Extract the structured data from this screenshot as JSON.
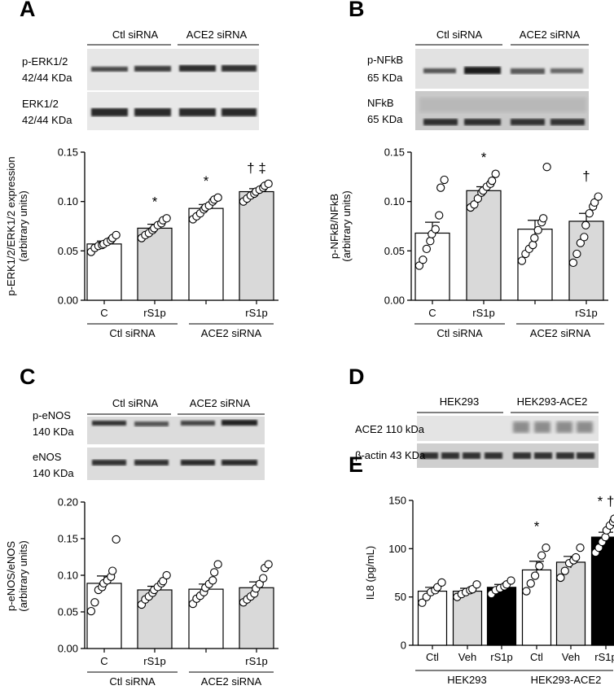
{
  "panels": {
    "A": {
      "letter": "A",
      "blot_groups": [
        "Ctl siRNA",
        "ACE2 siRNA"
      ],
      "blot_rows": [
        {
          "label1": "p-ERK1/2",
          "label2": "42/44 KDa"
        },
        {
          "label1": "ERK1/2",
          "label2": "42/44 KDa"
        }
      ]
    },
    "B": {
      "letter": "B",
      "blot_groups": [
        "Ctl siRNA",
        "ACE2 siRNA"
      ],
      "blot_rows": [
        {
          "label1": "p-NFkB",
          "label2": "65 KDa"
        },
        {
          "label1": "NFkB",
          "label2": "65 KDa"
        }
      ]
    },
    "C": {
      "letter": "C",
      "blot_groups": [
        "Ctl siRNA",
        "ACE2 siRNA"
      ],
      "blot_rows": [
        {
          "label1": "p-eNOS",
          "label2": "140 KDa"
        },
        {
          "label1": "eNOS",
          "label2": "140 KDa"
        }
      ]
    },
    "D": {
      "letter": "D",
      "blot_groups": [
        "HEK293",
        "HEK293-ACE2"
      ],
      "blot_rows": [
        {
          "label1": "ACE2 110 kDa"
        },
        {
          "label1": "β-actin 43 KDa"
        }
      ]
    },
    "E": {
      "letter": "E"
    }
  },
  "colors": {
    "white_bar": "#ffffff",
    "grey_bar": "#d9d9d9",
    "black_bar": "#000000"
  },
  "chart_data": [
    {
      "panel": "A",
      "type": "bar",
      "ylabel": "p-ERK1/2/ERK1/2 expression\n(arbitrary units)",
      "ylim": [
        0,
        0.15
      ],
      "yticks": [
        "0.00",
        "0.05",
        "0.10",
        "0.15"
      ],
      "categories": [
        "C",
        "rS1p",
        "",
        "rS1p"
      ],
      "groups": [
        "Ctl siRNA",
        "ACE2 siRNA"
      ],
      "values": [
        0.057,
        0.073,
        0.093,
        0.11
      ],
      "errors": [
        0.003,
        0.004,
        0.004,
        0.003
      ],
      "fills": [
        "white",
        "grey",
        "white",
        "grey"
      ],
      "annotations": [
        "",
        "*",
        "*",
        "† ‡"
      ],
      "points": [
        [
          0.049,
          0.053,
          0.055,
          0.056,
          0.057,
          0.059,
          0.061,
          0.063,
          0.066
        ],
        [
          0.063,
          0.066,
          0.068,
          0.071,
          0.073,
          0.076,
          0.078,
          0.081,
          0.083
        ],
        [
          0.082,
          0.085,
          0.088,
          0.092,
          0.094,
          0.096,
          0.1,
          0.102,
          0.104
        ],
        [
          0.1,
          0.103,
          0.106,
          0.108,
          0.11,
          0.112,
          0.114,
          0.116,
          0.118
        ]
      ]
    },
    {
      "panel": "B",
      "type": "bar",
      "ylabel": "p-NFkB/NFkB\n(arbitrary units)",
      "ylim": [
        0,
        0.15
      ],
      "yticks": [
        "0.00",
        "0.05",
        "0.10",
        "0.15"
      ],
      "categories": [
        "C",
        "rS1p",
        "",
        "rS1p"
      ],
      "groups": [
        "Ctl siRNA",
        "ACE2 siRNA"
      ],
      "values": [
        0.068,
        0.111,
        0.072,
        0.08
      ],
      "errors": [
        0.011,
        0.004,
        0.009,
        0.008
      ],
      "fills": [
        "white",
        "grey",
        "white",
        "grey"
      ],
      "annotations": [
        "",
        "*",
        "",
        "†"
      ],
      "points": [
        [
          0.035,
          0.041,
          0.052,
          0.06,
          0.067,
          0.072,
          0.086,
          0.114,
          0.122
        ],
        [
          0.094,
          0.097,
          0.103,
          0.109,
          0.111,
          0.115,
          0.118,
          0.121,
          0.128
        ],
        [
          0.04,
          0.047,
          0.052,
          0.056,
          0.063,
          0.071,
          0.079,
          0.083,
          0.135
        ],
        [
          0.038,
          0.047,
          0.058,
          0.064,
          0.076,
          0.088,
          0.095,
          0.099,
          0.105
        ]
      ]
    },
    {
      "panel": "C",
      "type": "bar",
      "ylabel": "p-eNOS/eNOS\n(arbitrary units)",
      "ylim": [
        0,
        0.2
      ],
      "yticks": [
        "0.00",
        "0.05",
        "0.10",
        "0.15",
        "0.20"
      ],
      "categories": [
        "C",
        "rS1p",
        "",
        "rS1p"
      ],
      "groups": [
        "Ctl siRNA",
        "ACE2 siRNA"
      ],
      "values": [
        0.089,
        0.08,
        0.081,
        0.083
      ],
      "errors": [
        0.01,
        0.005,
        0.007,
        0.008
      ],
      "fills": [
        "white",
        "grey",
        "white",
        "grey"
      ],
      "annotations": [
        "",
        "",
        "",
        ""
      ],
      "points": [
        [
          0.051,
          0.063,
          0.08,
          0.084,
          0.089,
          0.093,
          0.098,
          0.106,
          0.149
        ],
        [
          0.06,
          0.067,
          0.071,
          0.076,
          0.08,
          0.084,
          0.089,
          0.092,
          0.1
        ],
        [
          0.061,
          0.068,
          0.072,
          0.077,
          0.083,
          0.088,
          0.093,
          0.104,
          0.115
        ],
        [
          0.063,
          0.067,
          0.071,
          0.075,
          0.082,
          0.088,
          0.096,
          0.11,
          0.115
        ]
      ]
    },
    {
      "panel": "E",
      "type": "bar",
      "ylabel": "IL8 (pg/mL)",
      "ylim": [
        0,
        150
      ],
      "yticks": [
        "0",
        "50",
        "100",
        "150"
      ],
      "categories": [
        "Ctl",
        "Veh",
        "rS1p",
        "Ctl",
        "Veh",
        "rS1p"
      ],
      "groups": [
        "HEK293",
        "HEK293-ACE2"
      ],
      "values": [
        56,
        56,
        60,
        78,
        86,
        112
      ],
      "errors": [
        4,
        3,
        3,
        9,
        6,
        5
      ],
      "fills": [
        "white",
        "grey",
        "black",
        "white",
        "grey",
        "black"
      ],
      "annotations": [
        "",
        "",
        "",
        "*",
        "",
        "* †"
      ],
      "points": [
        [
          44,
          50,
          55,
          57,
          60,
          65
        ],
        [
          50,
          53,
          55,
          57,
          58,
          63
        ],
        [
          53,
          57,
          59,
          61,
          63,
          67
        ],
        [
          56,
          64,
          72,
          82,
          93,
          101
        ],
        [
          70,
          77,
          85,
          88,
          91,
          101
        ],
        [
          96,
          101,
          107,
          112,
          119,
          124,
          128,
          131
        ]
      ]
    }
  ]
}
